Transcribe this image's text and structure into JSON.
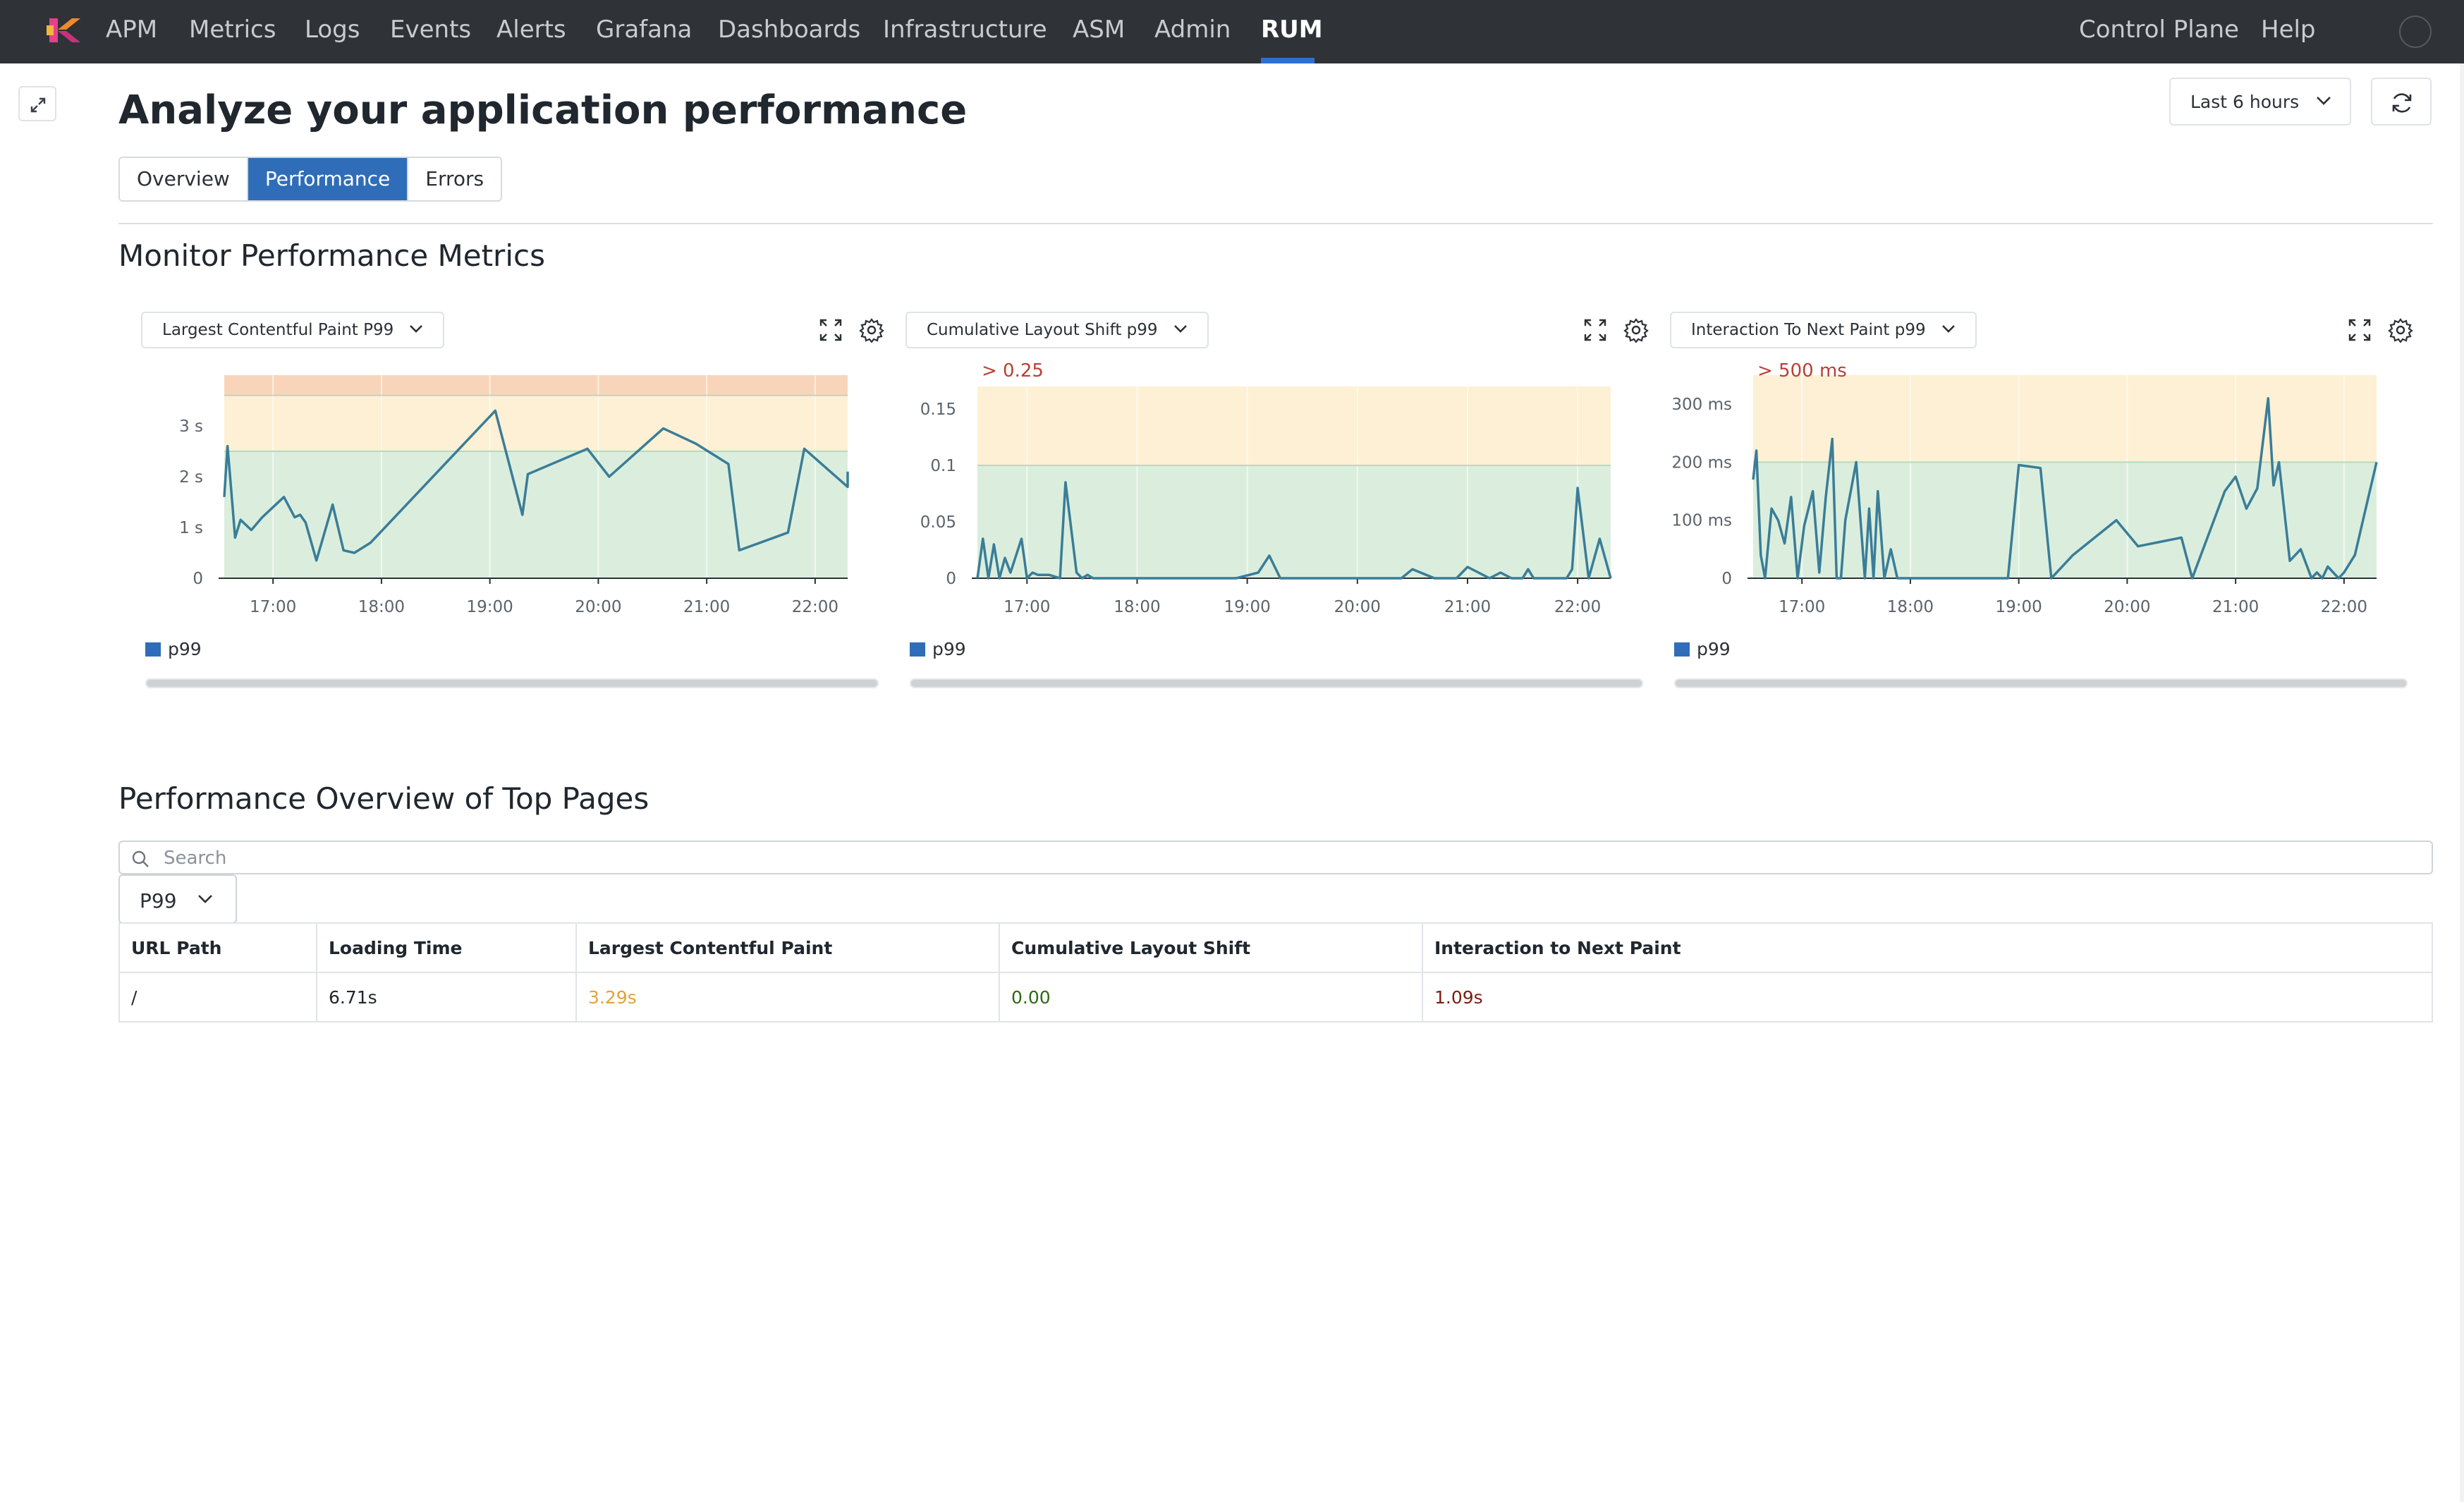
{
  "nav": {
    "items": [
      "APM",
      "Metrics",
      "Logs",
      "Events",
      "Alerts",
      "Grafana",
      "Dashboards",
      "Infrastructure",
      "ASM",
      "Admin",
      "RUM"
    ],
    "active": "RUM",
    "right_items": [
      "Control Plane",
      "Help"
    ]
  },
  "page": {
    "title": "Analyze your application performance",
    "time_range": "Last 6 hours",
    "tabs": [
      "Overview",
      "Performance",
      "Errors"
    ],
    "active_tab": "Performance"
  },
  "metrics_section": {
    "title": "Monitor Performance Metrics"
  },
  "colors": {
    "line": "#3a7d98",
    "good_zone": "#dbeedd",
    "warn_zone": "#fdf0d4",
    "poor_zone": "#f8d5ba",
    "threshold_text": "#b94034",
    "legend_swatch": "#2f6db8",
    "lcp_value": "#e3a23c",
    "cls_value": "#2e6a12",
    "inp_value": "#7a1e12"
  },
  "charts": [
    {
      "selector_label": "Largest Contentful Paint P99",
      "threshold_label": "",
      "legend": "p99",
      "chart_data": {
        "type": "line",
        "series": [
          {
            "name": "p99",
            "x_hours": [
              16.55,
              16.58,
              16.6,
              16.65,
              16.7,
              16.75,
              16.8,
              16.9,
              17.0,
              17.1,
              17.2,
              17.25,
              17.3,
              17.4,
              17.55,
              17.65,
              17.75,
              17.9,
              19.05,
              19.3,
              19.35,
              19.9,
              20.1,
              20.6,
              20.9,
              21.2,
              21.3,
              21.75,
              21.9,
              22.3,
              22.6
            ],
            "values": [
              1.6,
              2.6,
              2.1,
              0.8,
              1.15,
              1.05,
              0.95,
              1.2,
              1.4,
              1.6,
              1.2,
              1.25,
              1.1,
              0.35,
              1.45,
              0.55,
              0.5,
              0.7,
              3.3,
              1.25,
              2.05,
              2.55,
              2.0,
              2.95,
              2.65,
              2.25,
              0.55,
              0.9,
              2.55,
              1.8,
              2.1
            ]
          }
        ],
        "x_ticks": [
          "17:00",
          "18:00",
          "19:00",
          "20:00",
          "21:00",
          "22:00"
        ],
        "y_ticks": [
          "0",
          "1 s",
          "2 s",
          "3 s"
        ],
        "y_tick_values": [
          0,
          1,
          2,
          3
        ],
        "xlim": [
          16.55,
          22.3
        ],
        "ylim": [
          0,
          4.0
        ],
        "zones": [
          {
            "from": 0,
            "to": 2.5,
            "level": "good"
          },
          {
            "from": 2.5,
            "to": 3.6,
            "level": "warn"
          },
          {
            "from": 3.6,
            "to": 4.0,
            "level": "poor"
          }
        ]
      }
    },
    {
      "selector_label": "Cumulative Layout Shift p99",
      "threshold_label": "> 0.25",
      "legend": "p99",
      "chart_data": {
        "type": "line",
        "series": [
          {
            "name": "p99",
            "x_hours": [
              16.55,
              16.6,
              16.65,
              16.7,
              16.75,
              16.8,
              16.85,
              16.95,
              17.0,
              17.05,
              17.1,
              17.2,
              17.3,
              17.35,
              17.45,
              17.5,
              17.55,
              17.6,
              17.65,
              17.7,
              17.75,
              17.8,
              17.85,
              17.9,
              18.0,
              18.5,
              18.9,
              19.1,
              19.2,
              19.3,
              19.4,
              19.9,
              20.0,
              20.2,
              20.4,
              20.5,
              20.7,
              20.9,
              21.0,
              21.2,
              21.3,
              21.4,
              21.5,
              21.55,
              21.6,
              21.65,
              21.7,
              21.8,
              21.9,
              21.95,
              22.0,
              22.1,
              22.2,
              22.3
            ],
            "values": [
              0.0,
              0.035,
              0.0,
              0.03,
              0.0,
              0.018,
              0.005,
              0.035,
              0.0,
              0.005,
              0.003,
              0.003,
              0.0,
              0.085,
              0.005,
              0.0,
              0.003,
              0.0,
              0.0,
              0.0,
              0.0,
              0.0,
              0.0,
              0.0,
              0.0,
              0.0,
              0.0,
              0.005,
              0.02,
              0.0,
              0.0,
              0.0,
              0.0,
              0.0,
              0.0,
              0.008,
              0.0,
              0.0,
              0.01,
              0.0,
              0.005,
              0.0,
              0.0,
              0.008,
              0.0,
              0.0,
              0.0,
              0.0,
              0.0,
              0.008,
              0.08,
              0.0,
              0.035,
              0.0
            ]
          }
        ],
        "x_ticks": [
          "17:00",
          "18:00",
          "19:00",
          "20:00",
          "21:00",
          "22:00"
        ],
        "y_ticks": [
          "0",
          "0.05",
          "0.1",
          "0.15"
        ],
        "y_tick_values": [
          0,
          0.05,
          0.1,
          0.15
        ],
        "xlim": [
          16.55,
          22.3
        ],
        "ylim": [
          0,
          0.18
        ],
        "zones": [
          {
            "from": 0,
            "to": 0.1,
            "level": "good"
          },
          {
            "from": 0.1,
            "to": 0.17,
            "level": "warn"
          }
        ]
      }
    },
    {
      "selector_label": "Interaction To Next Paint p99",
      "threshold_label": "> 500 ms",
      "legend": "p99",
      "chart_data": {
        "type": "line",
        "series": [
          {
            "name": "p99",
            "x_hours": [
              16.55,
              16.58,
              16.62,
              16.66,
              16.72,
              16.78,
              16.84,
              16.9,
              16.96,
              17.02,
              17.1,
              17.16,
              17.22,
              17.28,
              17.32,
              17.36,
              17.4,
              17.5,
              17.58,
              17.62,
              17.66,
              17.7,
              17.76,
              17.82,
              17.88,
              17.95,
              18.0,
              18.15,
              18.3,
              18.5,
              18.7,
              18.9,
              19.0,
              19.2,
              19.3,
              19.5,
              19.9,
              20.1,
              20.5,
              20.6,
              20.9,
              21.0,
              21.1,
              21.2,
              21.3,
              21.35,
              21.4,
              21.5,
              21.6,
              21.7,
              21.75,
              21.8,
              21.85,
              21.95,
              22.0,
              22.1,
              22.2,
              22.3
            ],
            "values": [
              170,
              220,
              40,
              0,
              120,
              100,
              60,
              140,
              0,
              90,
              150,
              10,
              140,
              240,
              0,
              0,
              100,
              200,
              0,
              120,
              0,
              150,
              0,
              50,
              0,
              0,
              0,
              0,
              0,
              0,
              0,
              0,
              195,
              190,
              0,
              40,
              100,
              55,
              70,
              0,
              150,
              175,
              120,
              155,
              310,
              160,
              200,
              30,
              50,
              0,
              10,
              0,
              20,
              0,
              10,
              40,
              120,
              200
            ]
          }
        ],
        "x_ticks": [
          "17:00",
          "18:00",
          "19:00",
          "20:00",
          "21:00",
          "22:00"
        ],
        "y_ticks": [
          "0",
          "100 ms",
          "200 ms",
          "300 ms"
        ],
        "y_tick_values": [
          0,
          100,
          200,
          300
        ],
        "xlim": [
          16.55,
          22.3
        ],
        "ylim": [
          0,
          350
        ],
        "zones": [
          {
            "from": 0,
            "to": 200,
            "level": "good"
          },
          {
            "from": 200,
            "to": 350,
            "level": "warn"
          }
        ]
      }
    }
  ],
  "pages_section": {
    "title": "Performance Overview of Top Pages",
    "search_placeholder": "Search",
    "percentile": "P99",
    "columns": [
      "URL Path",
      "Loading Time",
      "Largest Contentful Paint",
      "Cumulative Layout Shift",
      "Interaction to Next Paint"
    ],
    "rows": [
      {
        "url": "/",
        "loading_time": "6.71s",
        "lcp": "3.29s",
        "cls": "0.00",
        "inp": "1.09s"
      }
    ]
  }
}
